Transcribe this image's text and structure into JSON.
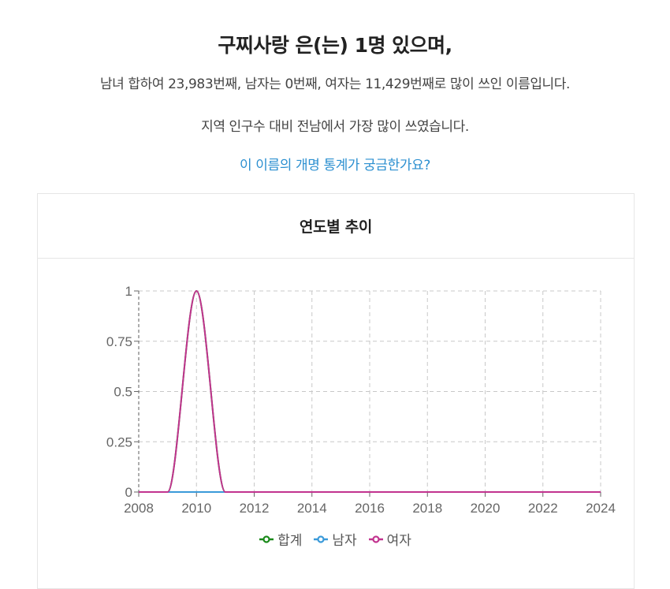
{
  "summary": {
    "headline": "구찌사랑 은(는) 1명 있으며,",
    "rank_sentence": "남녀 합하여 23,983번째, 남자는 0번째, 여자는 11,429번째로 많이 쓰인 이름입니다.",
    "region_sentence": "지역 인구수 대비 전남에서 가장 많이 쓰였습니다.",
    "rename_link": "이 이름의 개명 통계가 궁금한가요?"
  },
  "card": {
    "title": "연도별 추이"
  },
  "colors": {
    "total": "#1a8a1a",
    "male": "#3a9ad9",
    "female": "#c2338f",
    "link": "#2b8fd0",
    "grid": "#c8c8c8"
  },
  "chart_data": {
    "type": "line",
    "title": "연도별 추이",
    "xlabel": "",
    "ylabel": "",
    "x": [
      2008,
      2009,
      2010,
      2011,
      2012,
      2013,
      2014,
      2015,
      2016,
      2017,
      2018,
      2019,
      2020,
      2021,
      2022,
      2023,
      2024
    ],
    "series": [
      {
        "name": "합계",
        "color": "#1a8a1a",
        "values": [
          0,
          0,
          1,
          0,
          0,
          0,
          0,
          0,
          0,
          0,
          0,
          0,
          0,
          0,
          0,
          0,
          0
        ]
      },
      {
        "name": "남자",
        "color": "#3a9ad9",
        "values": [
          0,
          0,
          0,
          0,
          0,
          0,
          0,
          0,
          0,
          0,
          0,
          0,
          0,
          0,
          0,
          0,
          0
        ]
      },
      {
        "name": "여자",
        "color": "#c2338f",
        "values": [
          0,
          0,
          1,
          0,
          0,
          0,
          0,
          0,
          0,
          0,
          0,
          0,
          0,
          0,
          0,
          0,
          0
        ]
      }
    ],
    "xticks": [
      "2008",
      "2010",
      "2012",
      "2014",
      "2016",
      "2018",
      "2020",
      "2022",
      "2024"
    ],
    "yticks": [
      "0",
      "0.25",
      "0.5",
      "0.75",
      "1"
    ],
    "xlim": [
      2008,
      2024
    ],
    "ylim": [
      0,
      1
    ],
    "grid": true,
    "legend_position": "bottom"
  },
  "legend": [
    {
      "label": "합계",
      "color": "#1a8a1a"
    },
    {
      "label": "남자",
      "color": "#3a9ad9"
    },
    {
      "label": "여자",
      "color": "#c2338f"
    }
  ]
}
